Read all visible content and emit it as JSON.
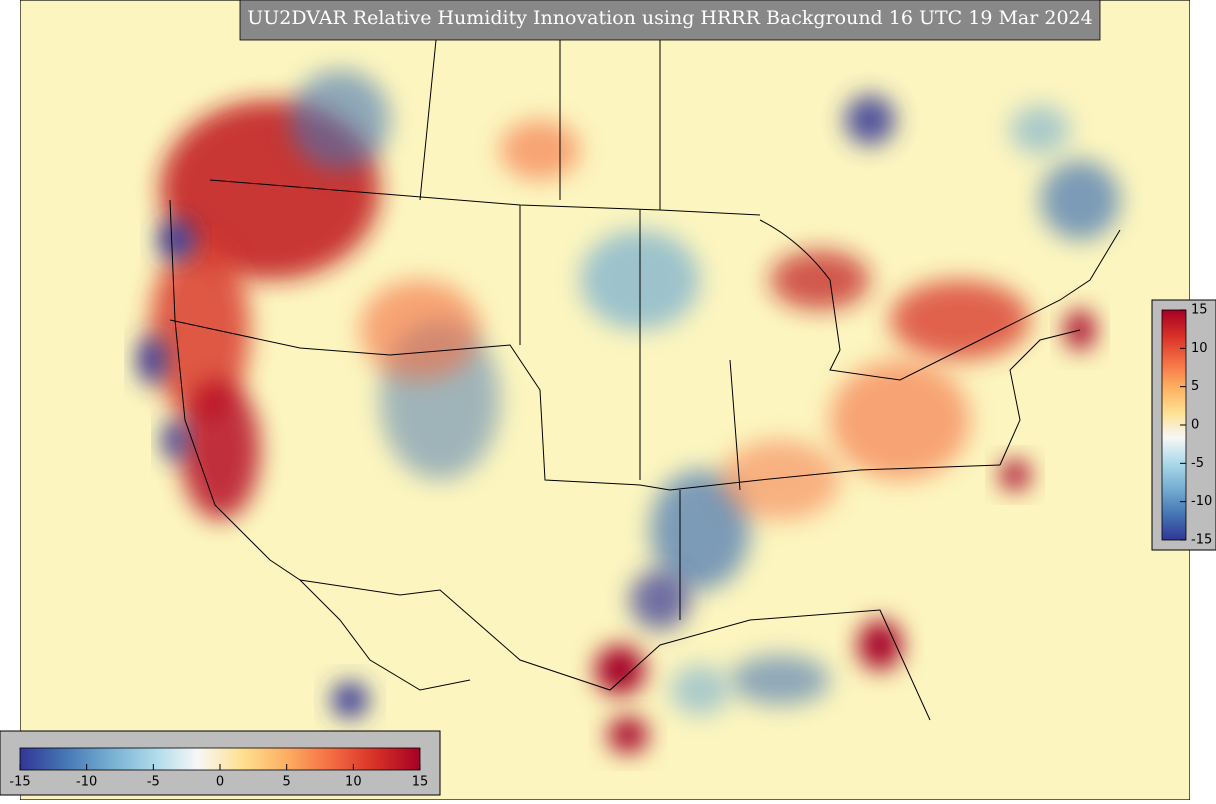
{
  "title": "UU2DVAR Relative Humidity Innovation using HRRR Background 16 UTC 19 Mar 2024",
  "colorbar": {
    "range": [
      -15,
      15
    ],
    "ticks": [
      -15,
      -10,
      -5,
      0,
      5,
      10,
      15
    ],
    "colors": [
      "#313695",
      "#4575b4",
      "#74add1",
      "#abd9e9",
      "#f7f7f7",
      "#fee090",
      "#fdae61",
      "#f46d43",
      "#d73027",
      "#a50026"
    ]
  }
}
